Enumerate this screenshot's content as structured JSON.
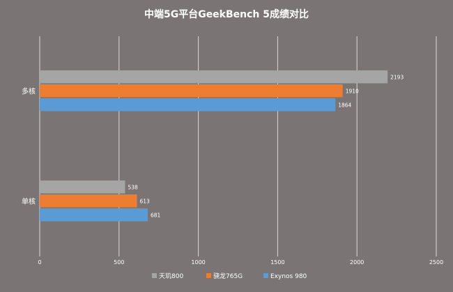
{
  "chart_data": {
    "type": "bar",
    "orientation": "horizontal",
    "title": "中端5G平台GeekBench 5成绩对比",
    "categories": [
      "多核",
      "单核"
    ],
    "series": [
      {
        "name": "天玑800",
        "color": "#a5a5a5",
        "values": [
          2193,
          538
        ]
      },
      {
        "name": "骁龙765G",
        "color": "#ed7d31",
        "values": [
          1910,
          613
        ]
      },
      {
        "name": "Exynos 980",
        "color": "#5b9bd5",
        "values": [
          1864,
          681
        ]
      }
    ],
    "xlim": [
      0,
      2500
    ],
    "xticks": [
      "0",
      "500",
      "1000",
      "1500",
      "2000",
      "2500"
    ],
    "grid": "vertical",
    "legend_position": "bottom",
    "data_labels": true
  },
  "style": {
    "background": "#7a7574",
    "gridline": "#d9d9d9",
    "text": "#ffffff"
  }
}
